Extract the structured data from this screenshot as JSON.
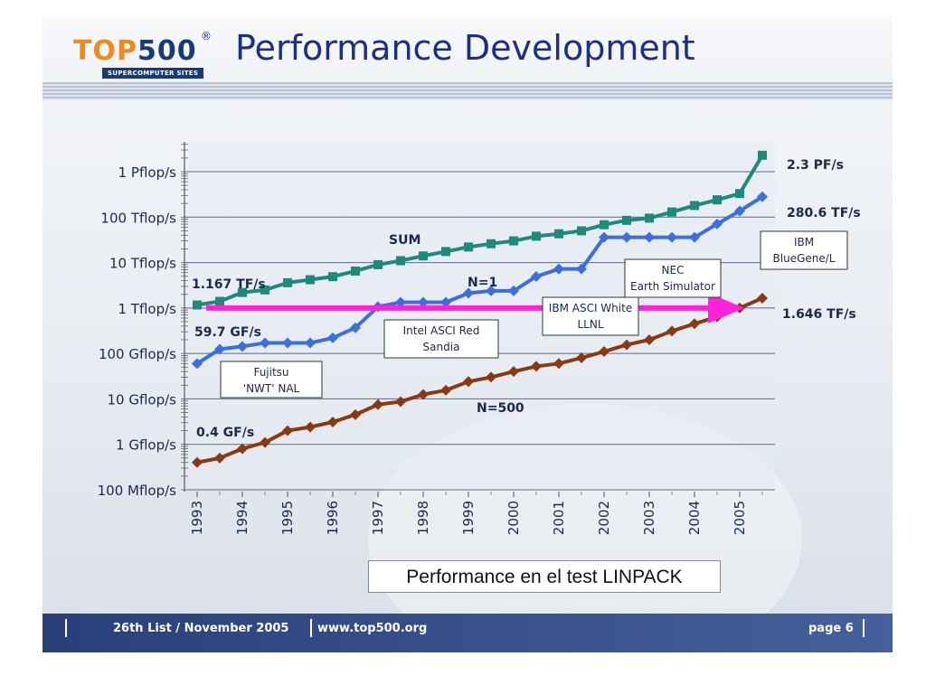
{
  "header": {
    "title": "Performance Development",
    "logo_top": "TOP",
    "logo_num": "500",
    "logo_reg": "®",
    "logo_sub": "SUPERCOMPUTER SITES"
  },
  "caption": "Performance en el test LINPACK",
  "footer": {
    "list": "26th List / November 2005",
    "url": "www.top500.org",
    "page": "page 6"
  },
  "colors": {
    "sum": "#1e8a7c",
    "n1": "#3b6fe0",
    "n500": "#8a3a12",
    "arrow": "#ff22dd",
    "footer": "#2a3f7a",
    "title": "#1a2f8a"
  },
  "chart_data": {
    "type": "line",
    "yscale": "log",
    "ylim": [
      0.1,
      6000000
    ],
    "y_ticks": [
      {
        "value": 0.1,
        "label": "100 Mflop/s"
      },
      {
        "value": 1,
        "label": "1 Gflop/s"
      },
      {
        "value": 10,
        "label": "10 Gflop/s"
      },
      {
        "value": 100,
        "label": "100 Gflop/s"
      },
      {
        "value": 1000,
        "label": "1 Tflop/s"
      },
      {
        "value": 10000,
        "label": "10 Tflop/s"
      },
      {
        "value": 100000,
        "label": "100 Tflop/s"
      },
      {
        "value": 1000000,
        "label": "1 Pflop/s"
      }
    ],
    "x_labels": [
      "1993",
      "1994",
      "1995",
      "1996",
      "1997",
      "1998",
      "1999",
      "2000",
      "2001",
      "2002",
      "2003",
      "2004",
      "2005"
    ],
    "xlim": [
      1993,
      2005.75
    ],
    "grid": true,
    "series": [
      {
        "name": "SUM",
        "marker": "square",
        "x": [
          1993.0,
          1993.5,
          1994.0,
          1994.5,
          1995.0,
          1995.5,
          1996.0,
          1996.5,
          1997.0,
          1997.5,
          1998.0,
          1998.5,
          1999.0,
          1999.5,
          2000.0,
          2000.5,
          2001.0,
          2001.5,
          2002.0,
          2002.5,
          2003.0,
          2003.5,
          2004.0,
          2004.5,
          2005.0,
          2005.5
        ],
        "y": [
          1167,
          1400,
          2200,
          2500,
          3600,
          4200,
          4900,
          6500,
          9000,
          11000,
          14000,
          17500,
          22000,
          26000,
          30000,
          38000,
          43000,
          50000,
          68000,
          85000,
          95000,
          130000,
          180000,
          240000,
          330000,
          2300000
        ]
      },
      {
        "name": "N=1",
        "marker": "diamond",
        "x": [
          1993.0,
          1993.5,
          1994.0,
          1994.5,
          1995.0,
          1995.5,
          1996.0,
          1996.5,
          1997.0,
          1997.5,
          1998.0,
          1998.5,
          1999.0,
          1999.5,
          2000.0,
          2000.5,
          2001.0,
          2001.5,
          2002.0,
          2002.5,
          2003.0,
          2003.5,
          2004.0,
          2004.5,
          2005.0,
          2005.5
        ],
        "y": [
          59.7,
          124,
          143,
          170,
          170,
          170,
          220,
          368,
          1068,
          1338,
          1338,
          1338,
          2121,
          2380,
          2380,
          4938,
          7226,
          7226,
          35860,
          35860,
          35860,
          35860,
          35860,
          70720,
          136800,
          280600
        ]
      },
      {
        "name": "N=500",
        "marker": "diamond",
        "x": [
          1993.0,
          1993.5,
          1994.0,
          1994.5,
          1995.0,
          1995.5,
          1996.0,
          1996.5,
          1997.0,
          1997.5,
          1998.0,
          1998.5,
          1999.0,
          1999.5,
          2000.0,
          2000.5,
          2001.0,
          2001.5,
          2002.0,
          2002.5,
          2003.0,
          2003.5,
          2004.0,
          2004.5,
          2005.0,
          2005.5
        ],
        "y": [
          0.4,
          0.5,
          0.8,
          1.1,
          2.0,
          2.4,
          3.1,
          4.5,
          7.5,
          8.7,
          12.5,
          15.5,
          24,
          30,
          40,
          52,
          60,
          80,
          110,
          155,
          200,
          310,
          450,
          640,
          1000,
          1646
        ]
      }
    ],
    "trend_arrow": {
      "x0": 1993.0,
      "x1": 2005.0,
      "y": 1000
    },
    "annotations": [
      {
        "text": "2.3 PF/s"
      },
      {
        "text": "280.6 TF/s"
      },
      {
        "text": "1.646 TF/s"
      },
      {
        "text": "1.167 TF/s"
      },
      {
        "text": "59.7 GF/s"
      },
      {
        "text": "0.4 GF/s"
      },
      {
        "text": "SUM"
      },
      {
        "text": "N=1"
      },
      {
        "text": "N=500"
      }
    ],
    "callouts": [
      {
        "lines": [
          "Fujitsu",
          "'NWT' NAL"
        ]
      },
      {
        "lines": [
          "Intel ASCI Red",
          "Sandia"
        ]
      },
      {
        "lines": [
          "IBM ASCI White",
          "LLNL"
        ]
      },
      {
        "lines": [
          "NEC",
          "Earth Simulator"
        ]
      },
      {
        "lines": [
          "IBM",
          "BlueGene/L"
        ]
      }
    ]
  }
}
